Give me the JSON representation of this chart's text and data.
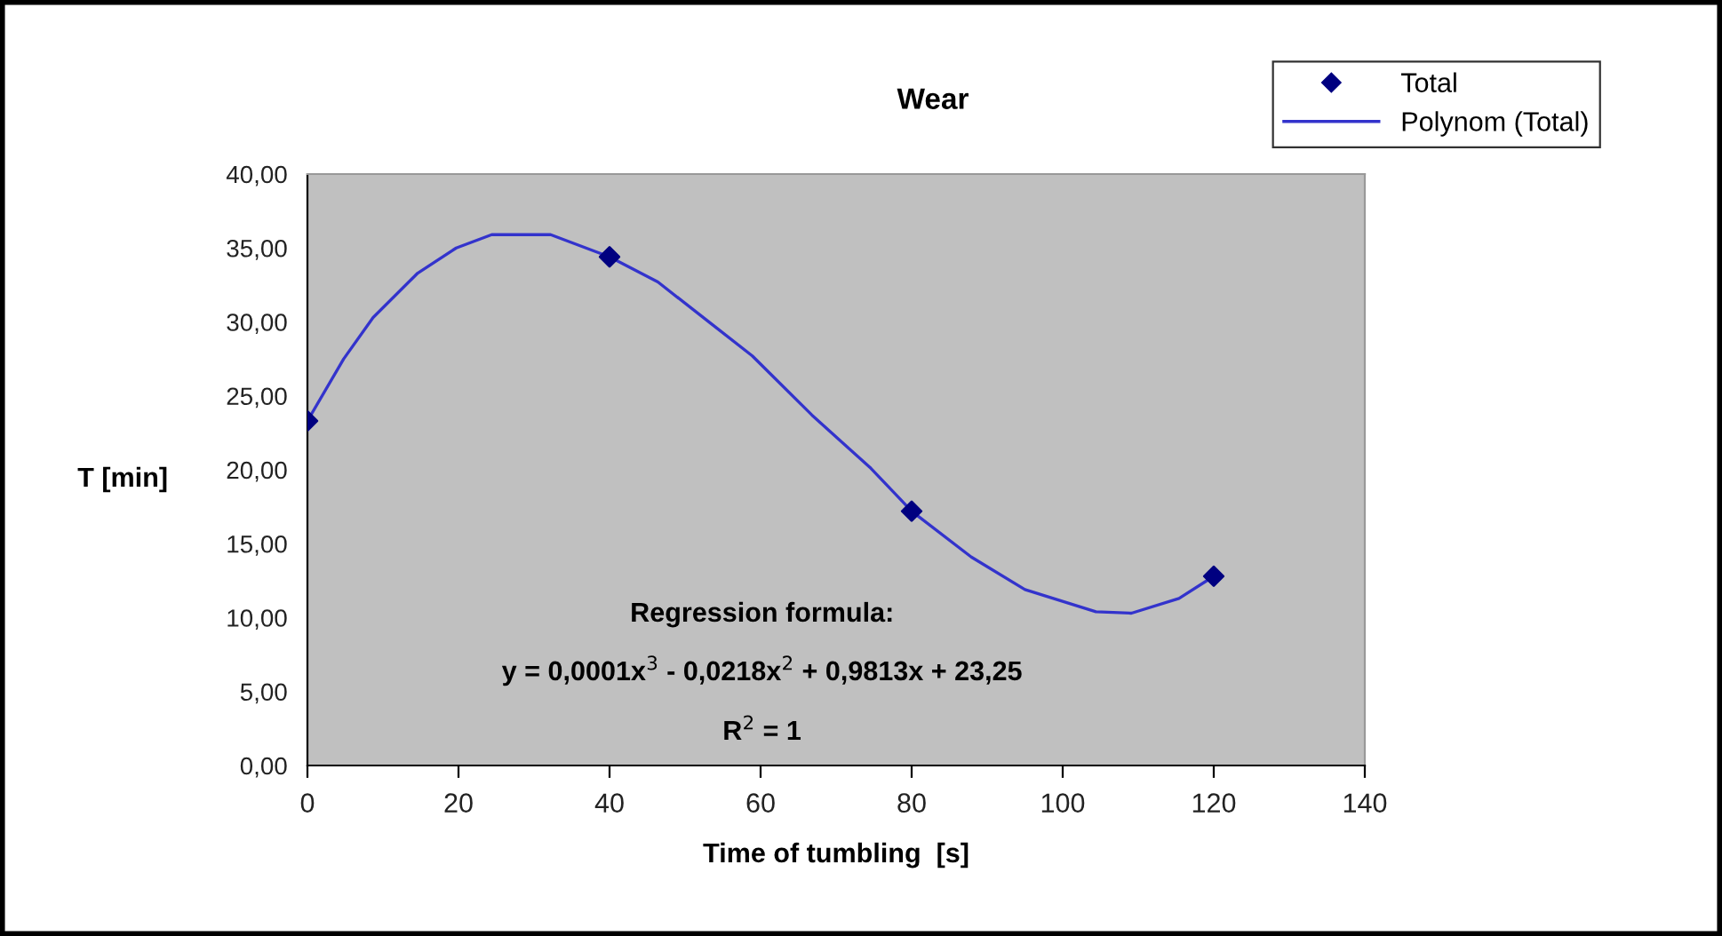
{
  "chart_data": {
    "type": "line",
    "title": "Wear",
    "xlabel": "Time of tumbling  [s]",
    "ylabel": "T [min]",
    "annotations": [
      "Regression formula:",
      "y = 0,0001x$^{3}$ - 0,0218x$^{2}$ + 0,9813x + 23,25",
      "R$^{2}$ = 1"
    ],
    "series": [
      {
        "name": "Total",
        "type": "scatter",
        "marker": "diamond",
        "color": "#000080",
        "x": [
          0,
          40,
          80,
          120
        ],
        "values": [
          23.3,
          34.4,
          17.2,
          12.8
        ]
      },
      {
        "name": "Polynom (Total)",
        "marker": "none",
        "color": "#3333cc",
        "x": [
          0,
          4.8,
          8.7,
          14.6,
          19.7,
          24.4,
          32.2,
          40,
          46.4,
          53.4,
          58.9,
          66.8,
          74.6,
          80,
          87.9,
          95.0,
          104.4,
          109.1,
          115.4,
          120
        ],
        "values": [
          23.3,
          27.5,
          30.3,
          33.3,
          35.0,
          35.9,
          35.9,
          34.4,
          32.7,
          29.9,
          27.7,
          23.7,
          20.1,
          17.2,
          14.1,
          11.9,
          10.4,
          10.3,
          11.3,
          12.8
        ]
      }
    ],
    "xlim": [
      0,
      140
    ],
    "xticks": [
      0,
      20,
      40,
      60,
      80,
      100,
      120,
      140
    ],
    "ylim": [
      0,
      40
    ],
    "yticks": [
      {
        "value": 0,
        "label": "0,00"
      },
      {
        "value": 5,
        "label": "5,00"
      },
      {
        "value": 10,
        "label": "10,00"
      },
      {
        "value": 15,
        "label": "15,00"
      },
      {
        "value": 20,
        "label": "20,00"
      },
      {
        "value": 25,
        "label": "25,00"
      },
      {
        "value": 30,
        "label": "30,00"
      },
      {
        "value": 35,
        "label": "35,00"
      },
      {
        "value": 40,
        "label": "40,00"
      }
    ],
    "grid": false,
    "legend": "top right"
  }
}
